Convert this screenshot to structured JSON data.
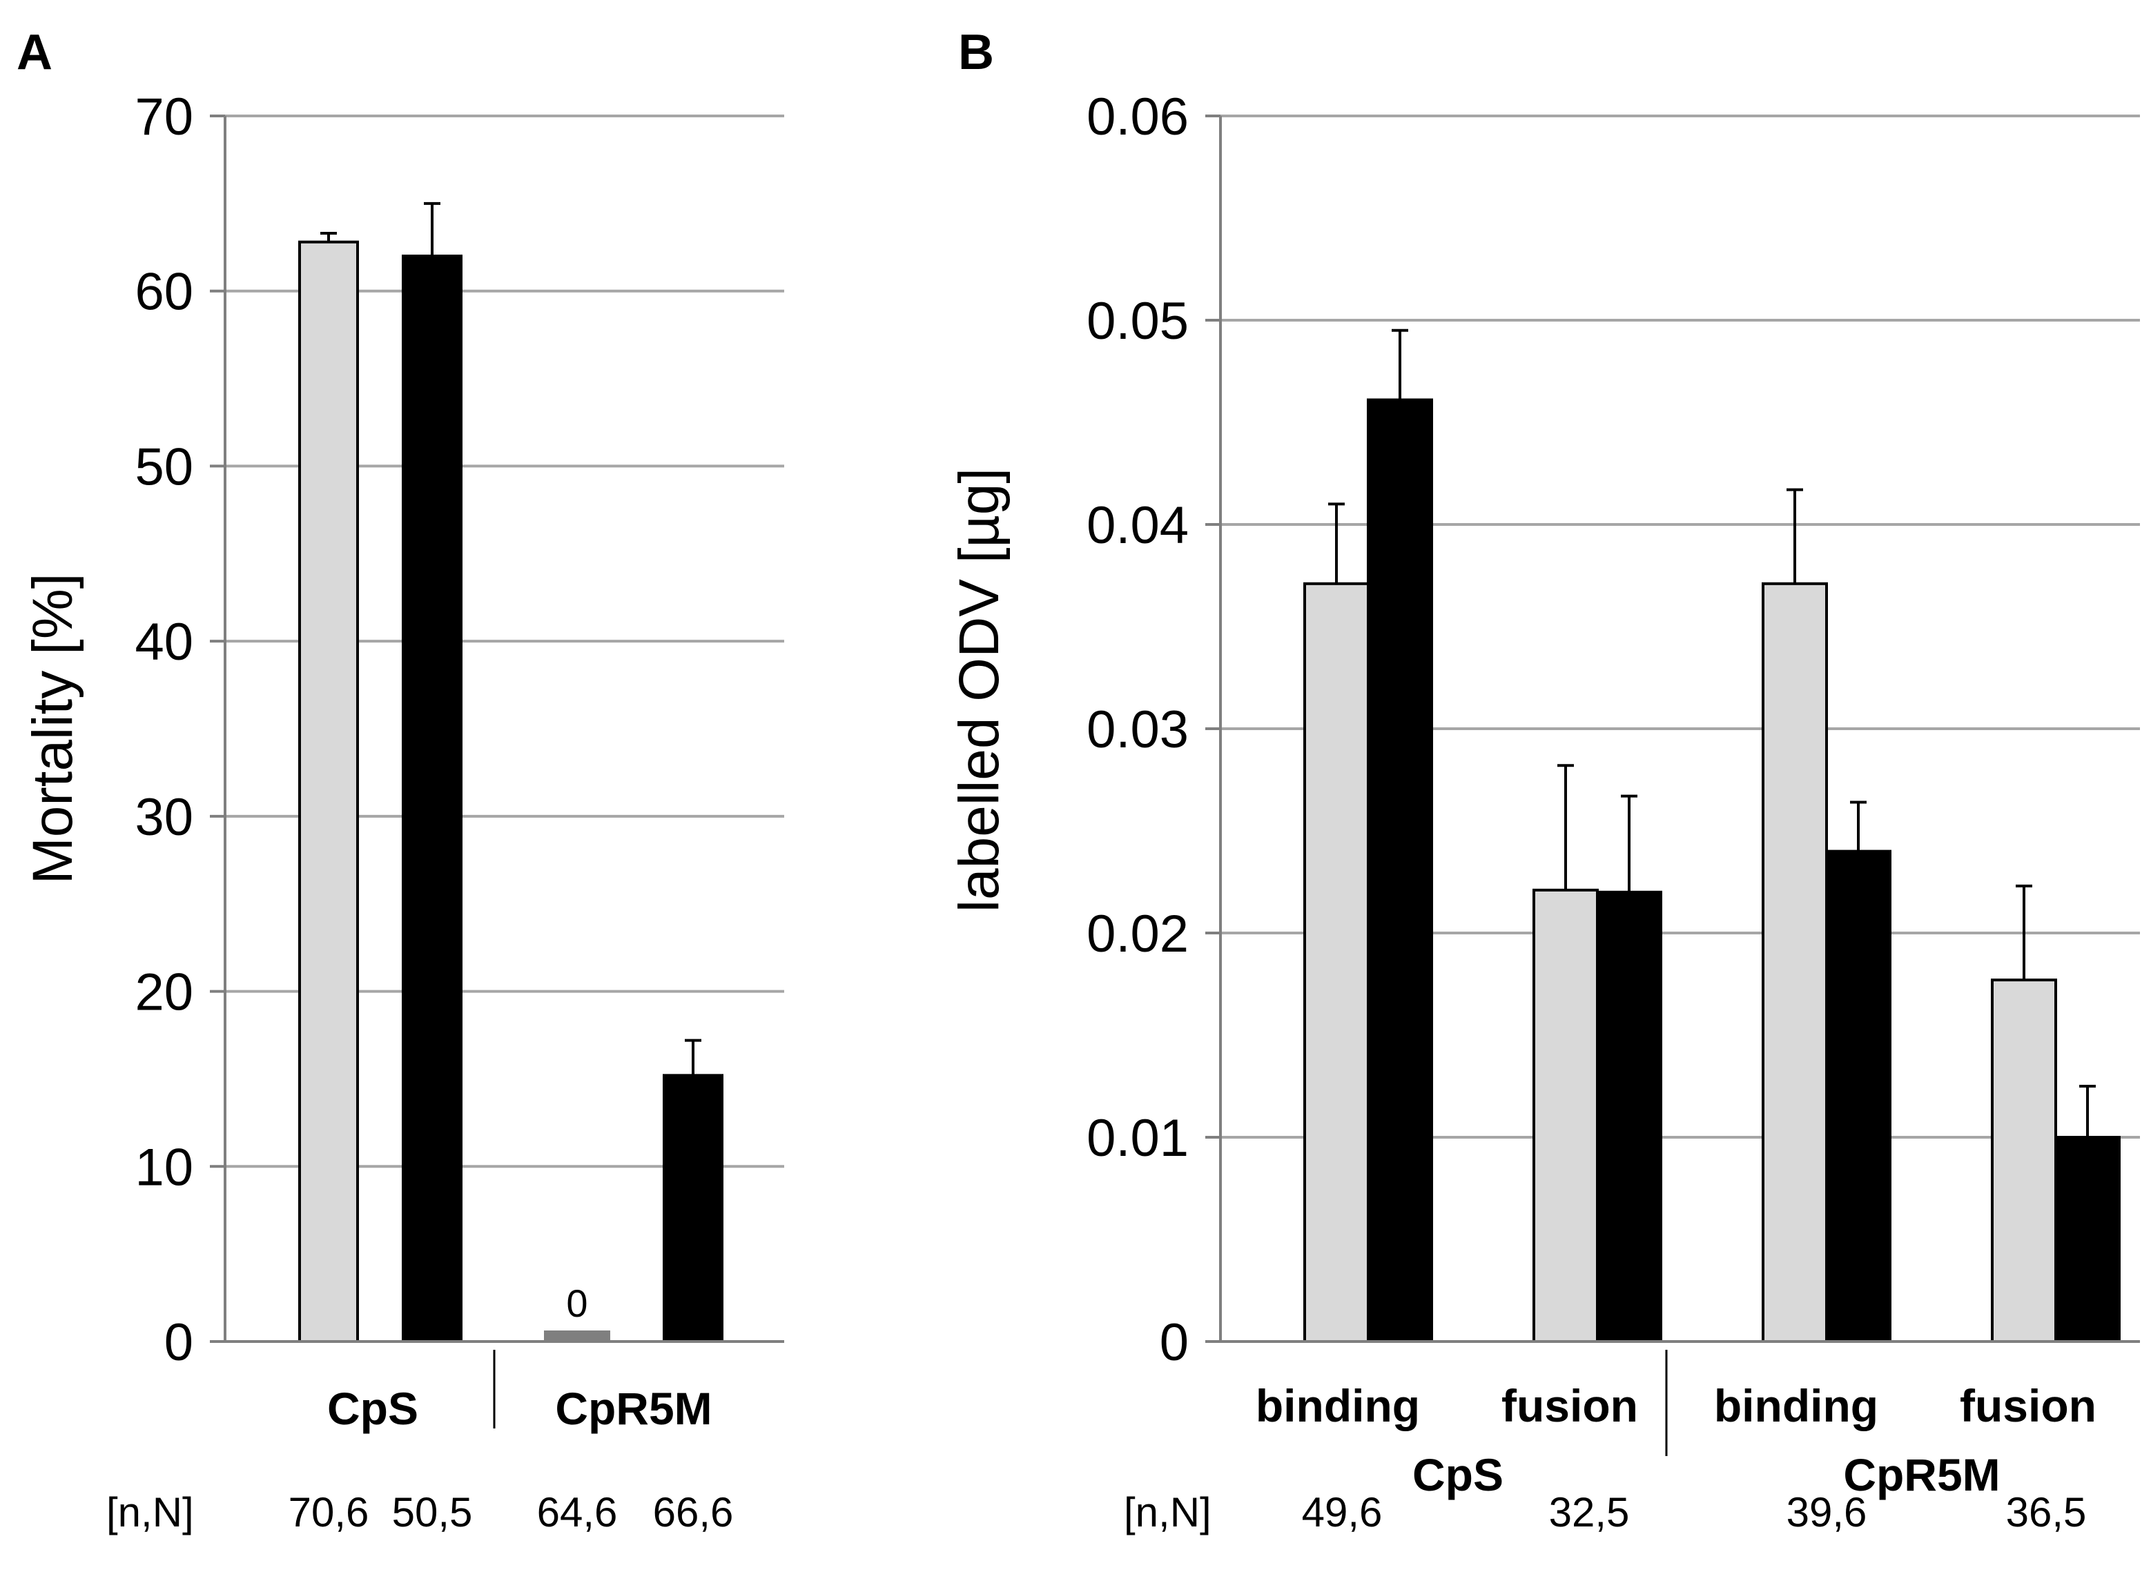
{
  "figure": {
    "panel_a_letter": "A",
    "panel_b_letter": "B"
  },
  "colors": {
    "light_series": "#d9d9d9",
    "dark_series": "#000000",
    "zero_bar": "#7f7f7f",
    "grid": "#a6a6a6"
  },
  "chart_data": [
    {
      "panel": "A",
      "type": "bar",
      "title": "",
      "ylabel": "Mortality [%]",
      "xlabel": "",
      "ylim": [
        0,
        70
      ],
      "yticks": [
        "0",
        "10",
        "20",
        "30",
        "40",
        "50",
        "60",
        "70"
      ],
      "grid": true,
      "group_labels": [
        "CpS",
        "CpR5M"
      ],
      "categories": [
        "CpS",
        "CpS",
        "CpR5M",
        "CpR5M"
      ],
      "bars": [
        {
          "group": "CpS",
          "series": "light",
          "value": 62.8,
          "error": 0.5,
          "nn": "70,6"
        },
        {
          "group": "CpS",
          "series": "dark",
          "value": 62.0,
          "error": 3.0,
          "nn": "50,5"
        },
        {
          "group": "CpR5M",
          "series": "light",
          "value": 0,
          "error": 0,
          "nn": "64,6",
          "label": "0"
        },
        {
          "group": "CpR5M",
          "series": "dark",
          "value": 15.2,
          "error": 2.0,
          "nn": "66,6"
        }
      ],
      "nn_header": "[n,N]"
    },
    {
      "panel": "B",
      "type": "bar",
      "title": "",
      "ylabel": "labelled ODV [µg]",
      "xlabel": "",
      "ylim": [
        0,
        0.06
      ],
      "yticks": [
        "0",
        "0.01",
        "0.02",
        "0.03",
        "0.04",
        "0.05",
        "0.06"
      ],
      "grid": true,
      "subgroup_labels": [
        "binding",
        "fusion",
        "binding",
        "fusion"
      ],
      "group_labels": [
        "CpS",
        "CpR5M"
      ],
      "series": [
        {
          "name": "light",
          "values": [
            0.0371,
            0.0221,
            0.0371,
            0.0177
          ],
          "errors": [
            0.0039,
            0.0061,
            0.0046,
            0.0046
          ]
        },
        {
          "name": "dark",
          "values": [
            0.0461,
            0.022,
            0.024,
            0.01
          ],
          "errors": [
            0.0034,
            0.0047,
            0.0024,
            0.0025
          ]
        }
      ],
      "nn_header": "[n,N]",
      "nn_values": [
        "49,6",
        "32,5",
        "39,6",
        "36,5"
      ]
    }
  ]
}
